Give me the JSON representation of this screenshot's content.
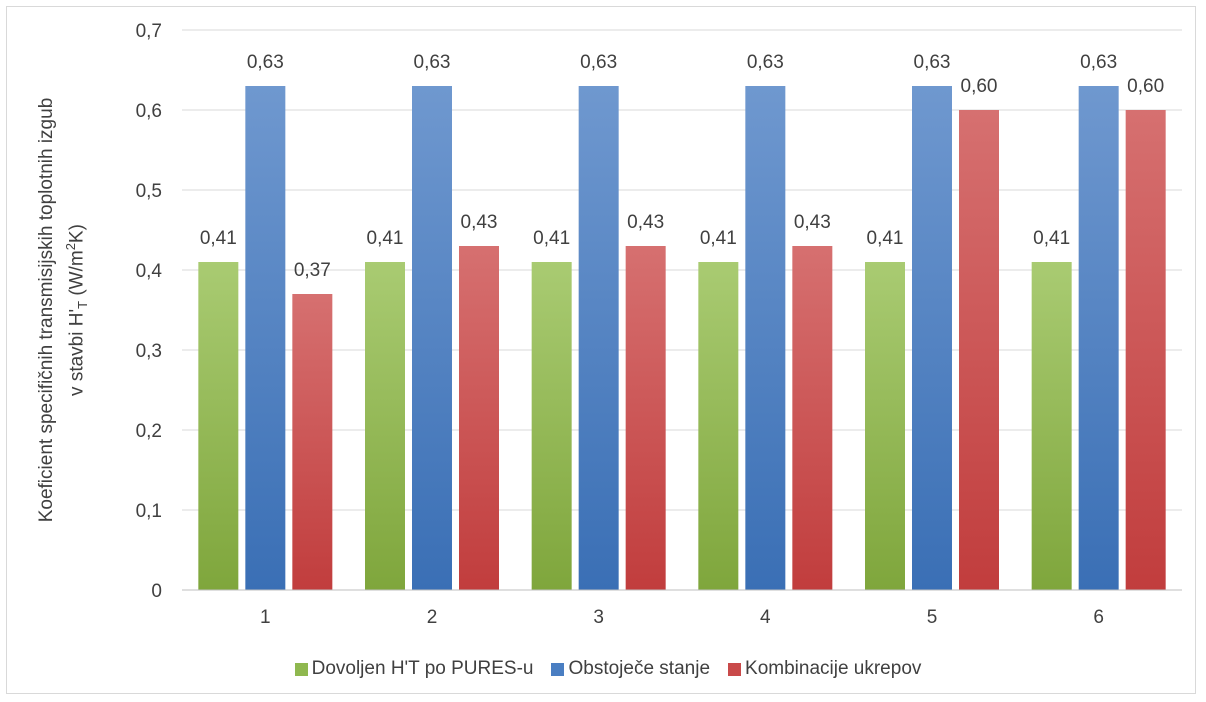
{
  "chart_data": {
    "type": "bar",
    "categories": [
      "1",
      "2",
      "3",
      "4",
      "5",
      "6"
    ],
    "series": [
      {
        "name": "Dovoljen H'T po PURES-u",
        "values": [
          0.41,
          0.41,
          0.41,
          0.41,
          0.41,
          0.41
        ],
        "labels": [
          "0,41",
          "0,41",
          "0,41",
          "0,41",
          "0,41",
          "0,41"
        ],
        "color_top": "#a9cb72",
        "color_bottom": "#7fa63c"
      },
      {
        "name": "Obstoječe stanje",
        "values": [
          0.63,
          0.63,
          0.63,
          0.63,
          0.63,
          0.63
        ],
        "labels": [
          "0,63",
          "0,63",
          "0,63",
          "0,63",
          "0,63",
          "0,63"
        ],
        "color_top": "#6f98cf",
        "color_bottom": "#3a6fb5"
      },
      {
        "name": "Kombinacije ukrepov",
        "values": [
          0.37,
          0.43,
          0.43,
          0.43,
          0.6,
          0.6
        ],
        "labels": [
          "0,37",
          "0,43",
          "0,43",
          "0,43",
          "0,60",
          "0,60"
        ],
        "color_top": "#d67070",
        "color_bottom": "#c13d3d"
      }
    ],
    "ylim": [
      0,
      0.7
    ],
    "yticks": [
      0,
      0.1,
      0.2,
      0.3,
      0.4,
      0.5,
      0.6,
      0.7
    ],
    "ytick_labels": [
      "0",
      "0,1",
      "0,2",
      "0,3",
      "0,4",
      "0,5",
      "0,6",
      "0,7"
    ],
    "ylabel_line1": "Koeficient specifičnih transmisijskih toplotnih izgub",
    "ylabel_line2_prefix": "v stavbi H'",
    "ylabel_line2_sub": "T",
    "ylabel_line2_mid": " (W/m",
    "ylabel_line2_sup": "2",
    "ylabel_line2_suffix": "K)",
    "grid": true,
    "legend_position": "bottom"
  }
}
